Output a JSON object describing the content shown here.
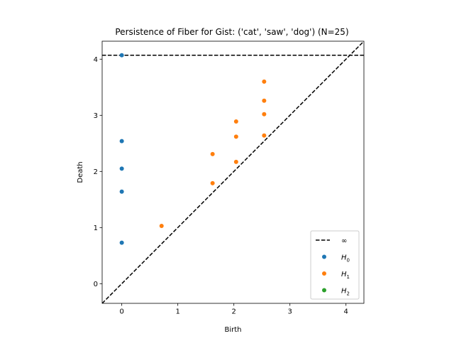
{
  "chart_data": {
    "type": "scatter",
    "title": "Persistence of Fiber for Gist: ('cat', 'saw', 'dog') (N=25)",
    "xlabel": "Birth",
    "ylabel": "Death",
    "xlim": [
      -0.35,
      4.32
    ],
    "ylim": [
      -0.35,
      4.32
    ],
    "xticks": [
      0,
      1,
      2,
      3,
      4
    ],
    "yticks": [
      0,
      1,
      2,
      3,
      4
    ],
    "infinity_line": {
      "label": "∞",
      "y": 4.07
    },
    "diagonal": true,
    "legend_position": "lower-right",
    "series": [
      {
        "name": "H0",
        "name_base": "H",
        "name_sub": "0",
        "color": "#1f77b4",
        "points": [
          [
            0,
            4.07
          ],
          [
            0,
            2.54
          ],
          [
            0,
            2.05
          ],
          [
            0,
            1.64
          ],
          [
            0,
            0.73
          ]
        ]
      },
      {
        "name": "H1",
        "name_base": "H",
        "name_sub": "1",
        "color": "#ff7f0e",
        "points": [
          [
            0.71,
            1.03
          ],
          [
            1.62,
            1.79
          ],
          [
            1.62,
            2.31
          ],
          [
            2.04,
            2.17
          ],
          [
            2.04,
            2.62
          ],
          [
            2.04,
            2.89
          ],
          [
            2.54,
            2.64
          ],
          [
            2.54,
            3.02
          ],
          [
            2.54,
            3.26
          ],
          [
            2.54,
            3.6
          ]
        ]
      },
      {
        "name": "H2",
        "name_base": "H",
        "name_sub": "2",
        "color": "#2ca02c",
        "points": []
      }
    ]
  }
}
